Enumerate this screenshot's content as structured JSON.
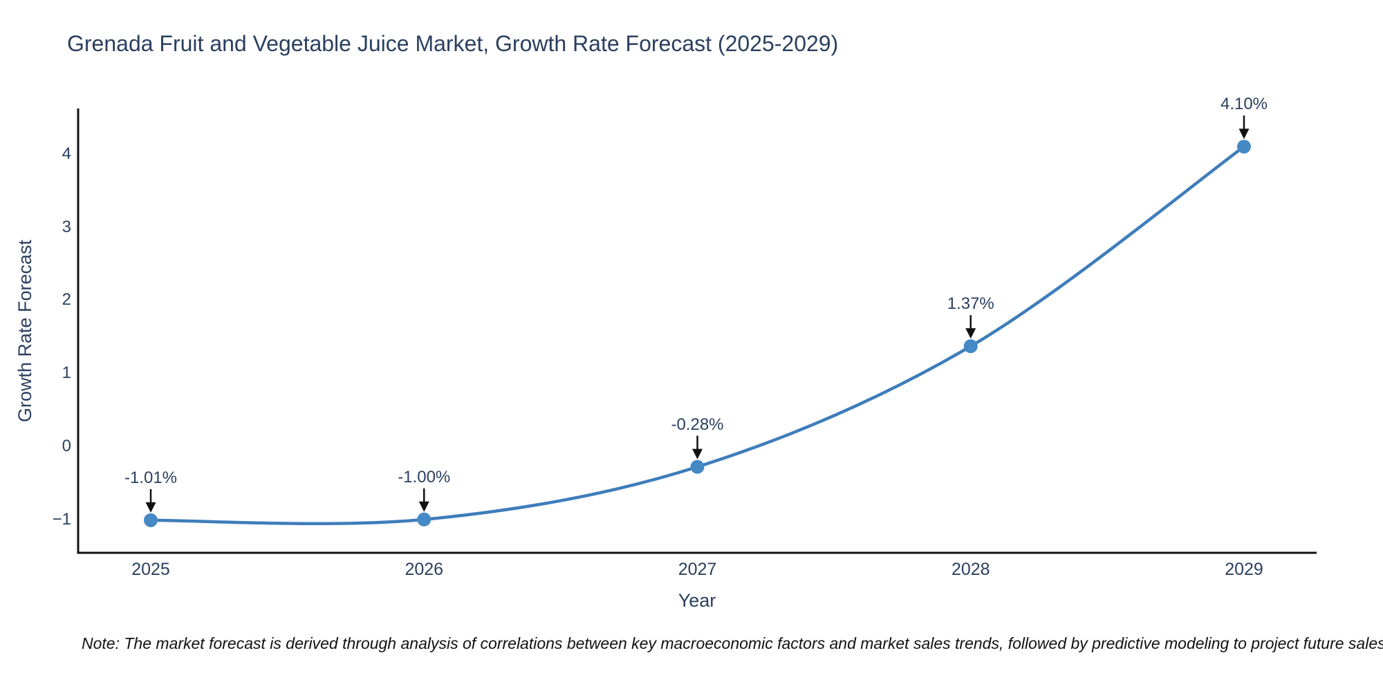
{
  "title": "Grenada Fruit and Vegetable Juice Market, Growth Rate Forecast (2025-2029)",
  "note": "Note: The market forecast is derived through analysis of correlations between key macroeconomic factors and market sales trends, followed by predictive modeling to project future sales",
  "chart_data": {
    "type": "line",
    "line_shape": "spline",
    "title": "Grenada Fruit and Vegetable Juice Market, Growth Rate Forecast (2025-2029)",
    "xlabel": "Year",
    "ylabel": "Growth Rate Forecast",
    "series": [
      {
        "name": "Growth Rate Forecast",
        "x": [
          2025,
          2026,
          2027,
          2028,
          2029
        ],
        "y": [
          -1.01,
          -1.0,
          -0.28,
          1.37,
          4.1
        ],
        "point_labels": [
          "-1.01%",
          "-1.00%",
          "-0.28%",
          "1.37%",
          "4.10%"
        ]
      }
    ],
    "x_tick_labels": [
      "2025",
      "2026",
      "2027",
      "2028",
      "2029"
    ],
    "x_tick_values": [
      2025,
      2026,
      2027,
      2028,
      2029
    ],
    "y_tick_labels": [
      "4",
      "3",
      "2",
      "1",
      "0",
      "−1"
    ],
    "y_tick_values": [
      4,
      3,
      2,
      1,
      0,
      -1
    ],
    "ylim": [
      -1.46,
      4.62
    ],
    "grid": false,
    "legend": false,
    "markers": true,
    "annotations_arrows": true,
    "colors": {
      "line": "#3E7DBA",
      "marker": "#4589C5",
      "axis": "#111111",
      "text": "#2A3F5F",
      "arrow": "#111111",
      "background": "#FFFFFF"
    }
  }
}
